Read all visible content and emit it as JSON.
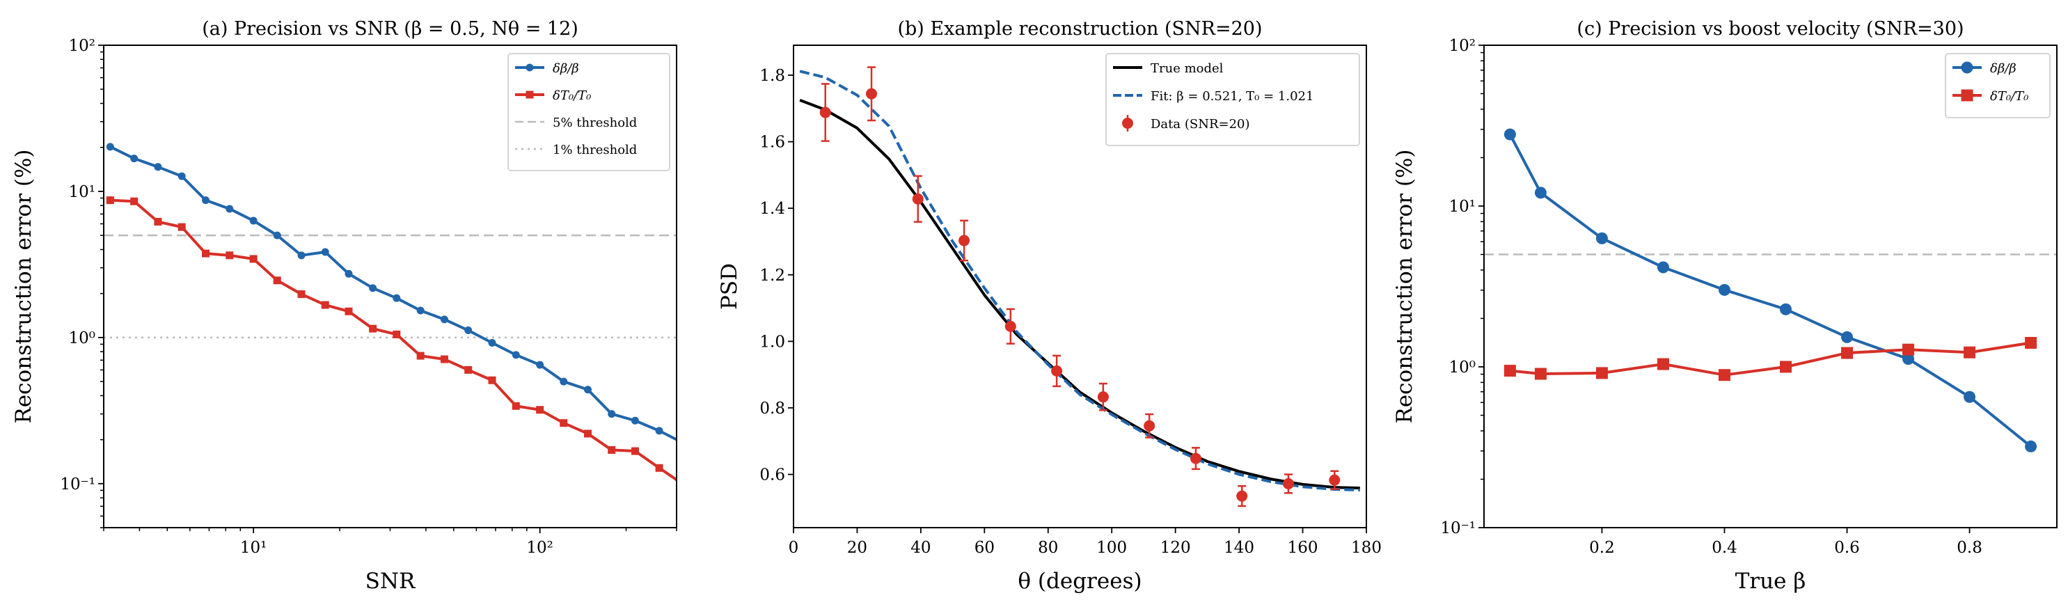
{
  "colors": {
    "blue": "#2166ac",
    "red": "#d73027",
    "threshold": "#bbbbbb",
    "true_model": "#000000"
  },
  "chart_data": [
    {
      "type": "line",
      "title": "(a) Precision vs SNR (β = 0.5, Nθ = 12)",
      "xlabel": "SNR",
      "ylabel": "Reconstruction error (%)",
      "xscale": "log",
      "yscale": "log",
      "xlim": [
        3,
        300
      ],
      "ylim": [
        0.05,
        100
      ],
      "xticks": [
        {
          "value": 10,
          "label": "10¹"
        },
        {
          "value": 100,
          "label": "10²"
        }
      ],
      "yticks": [
        {
          "value": 0.1,
          "label": "10⁻¹"
        },
        {
          "value": 1,
          "label": "10⁰"
        },
        {
          "value": 10,
          "label": "10¹"
        },
        {
          "value": 100,
          "label": "10²"
        }
      ],
      "grid": false,
      "legend_placement": "top-right",
      "x": [
        3.16,
        3.83,
        4.64,
        5.62,
        6.81,
        8.25,
        10,
        12.1,
        14.7,
        17.8,
        21.5,
        26.1,
        31.6,
        38.3,
        46.4,
        56.2,
        68.1,
        82.5,
        100,
        121,
        147,
        178,
        215,
        261,
        316
      ],
      "series": [
        {
          "name": "δβ/β",
          "color": "blue",
          "marker": "circle",
          "values": [
            20.2,
            16.8,
            14.7,
            12.7,
            8.7,
            7.6,
            6.3,
            5.0,
            3.65,
            3.85,
            2.73,
            2.18,
            1.86,
            1.53,
            1.33,
            1.12,
            0.92,
            0.76,
            0.65,
            0.5,
            0.44,
            0.3,
            0.27,
            0.23,
            0.19
          ]
        },
        {
          "name": "δT₀/T₀",
          "color": "red",
          "marker": "square",
          "values": [
            8.7,
            8.55,
            6.2,
            5.7,
            3.76,
            3.65,
            3.45,
            2.46,
            1.98,
            1.67,
            1.51,
            1.15,
            1.05,
            0.75,
            0.71,
            0.6,
            0.51,
            0.34,
            0.32,
            0.26,
            0.22,
            0.17,
            0.167,
            0.128,
            0.099
          ]
        }
      ],
      "hlines": [
        {
          "name": "5% threshold",
          "value": 5,
          "style": "dashed"
        },
        {
          "name": "1% threshold",
          "value": 1,
          "style": "dotted"
        }
      ]
    },
    {
      "type": "line",
      "title": "(b) Example reconstruction (SNR=20)",
      "xlabel": "θ (degrees)",
      "ylabel": "PSD",
      "xlim": [
        0,
        180
      ],
      "ylim": [
        0.44,
        1.89
      ],
      "xticks": [
        {
          "value": 0,
          "label": "0"
        },
        {
          "value": 20,
          "label": "20"
        },
        {
          "value": 40,
          "label": "40"
        },
        {
          "value": 60,
          "label": "60"
        },
        {
          "value": 80,
          "label": "80"
        },
        {
          "value": 100,
          "label": "100"
        },
        {
          "value": 120,
          "label": "120"
        },
        {
          "value": 140,
          "label": "140"
        },
        {
          "value": 160,
          "label": "160"
        },
        {
          "value": 180,
          "label": "180"
        }
      ],
      "yticks": [
        {
          "value": 0.6,
          "label": "0.6"
        },
        {
          "value": 0.8,
          "label": "0.8"
        },
        {
          "value": 1.0,
          "label": "1.0"
        },
        {
          "value": 1.2,
          "label": "1.2"
        },
        {
          "value": 1.4,
          "label": "1.4"
        },
        {
          "value": 1.6,
          "label": "1.6"
        },
        {
          "value": 1.8,
          "label": "1.8"
        }
      ],
      "grid": false,
      "legend_placement": "top-right",
      "curves": [
        {
          "name": "True model",
          "color": "true_model",
          "style": "solid",
          "x": [
            2,
            10,
            20,
            30,
            40,
            50,
            60,
            70,
            80,
            90,
            100,
            110,
            120,
            130,
            140,
            150,
            160,
            170,
            178
          ],
          "y": [
            1.725,
            1.696,
            1.641,
            1.548,
            1.419,
            1.279,
            1.139,
            1.022,
            0.934,
            0.847,
            0.785,
            0.73,
            0.681,
            0.639,
            0.609,
            0.586,
            0.57,
            0.561,
            0.559
          ]
        },
        {
          "name": "Fit: β = 0.521, T₀ = 1.021",
          "color": "blue",
          "style": "dashed",
          "x": [
            2,
            10,
            20,
            30,
            40,
            50,
            60,
            70,
            80,
            90,
            100,
            110,
            120,
            130,
            140,
            150,
            160,
            170,
            178
          ],
          "y": [
            1.812,
            1.793,
            1.74,
            1.647,
            1.46,
            1.3,
            1.16,
            1.03,
            0.93,
            0.84,
            0.78,
            0.725,
            0.675,
            0.632,
            0.6,
            0.578,
            0.563,
            0.555,
            0.553
          ]
        }
      ],
      "errorbar_series": {
        "name": "Data (SNR=20)",
        "color": "red",
        "x": [
          10,
          24.5,
          39.1,
          53.6,
          68.2,
          82.7,
          97.3,
          111.8,
          126.4,
          140.9,
          155.5,
          170
        ],
        "y": [
          1.688,
          1.744,
          1.428,
          1.303,
          1.045,
          0.911,
          0.833,
          0.746,
          0.648,
          0.535,
          0.572,
          0.583
        ],
        "yerr": [
          0.086,
          0.08,
          0.069,
          0.06,
          0.052,
          0.046,
          0.04,
          0.035,
          0.032,
          0.03,
          0.028,
          0.027
        ]
      }
    },
    {
      "type": "line",
      "title": "(c) Precision vs boost velocity (SNR=30)",
      "xlabel": "True β",
      "ylabel": "Reconstruction error (%)",
      "yscale": "log",
      "xlim": [
        0.0075,
        0.9425
      ],
      "ylim": [
        0.1,
        100
      ],
      "xticks": [
        {
          "value": 0.2,
          "label": "0.2"
        },
        {
          "value": 0.4,
          "label": "0.4"
        },
        {
          "value": 0.6,
          "label": "0.6"
        },
        {
          "value": 0.8,
          "label": "0.8"
        }
      ],
      "yticks": [
        {
          "value": 0.1,
          "label": "10⁻¹"
        },
        {
          "value": 1,
          "label": "10⁰"
        },
        {
          "value": 10,
          "label": "10¹"
        },
        {
          "value": 100,
          "label": "10²"
        }
      ],
      "grid": false,
      "legend_placement": "top-right",
      "x": [
        0.05,
        0.1,
        0.2,
        0.3,
        0.4,
        0.5,
        0.6,
        0.7,
        0.8,
        0.9
      ],
      "series": [
        {
          "name": "δβ/β",
          "color": "blue",
          "marker": "circle",
          "values": [
            27.9,
            12.1,
            6.3,
            4.16,
            3.01,
            2.28,
            1.53,
            1.12,
            0.65,
            0.32
          ]
        },
        {
          "name": "δT₀/T₀",
          "color": "red",
          "marker": "square",
          "values": [
            0.946,
            0.905,
            0.915,
            1.04,
            0.89,
            1.0,
            1.22,
            1.28,
            1.23,
            1.41
          ]
        }
      ],
      "hlines": [
        {
          "value": 5,
          "style": "dashed"
        }
      ]
    }
  ]
}
